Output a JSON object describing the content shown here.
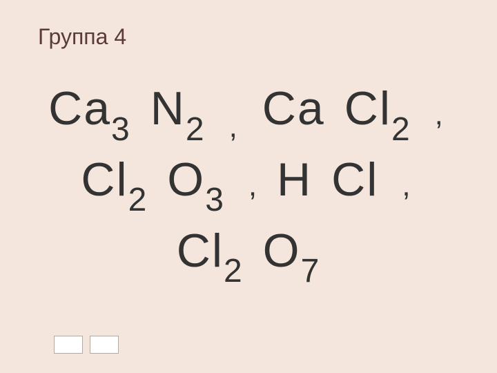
{
  "title": "Группа 4",
  "line1": {
    "t1": "Ca",
    "s1": "3",
    "t2": "N",
    "s2": "2",
    "c1": ",",
    "t3": "Ca",
    "t4": "Cl",
    "s4": "2",
    "c2": ","
  },
  "line2": {
    "t1": "Cl",
    "s1": "2",
    "t2": "O",
    "s2": "3",
    "c1": ",",
    "t3": "H",
    "t4": "Cl",
    "c2": ","
  },
  "line3": {
    "t1": "Cl",
    "s1": "2",
    "t2": "O",
    "s2": "7"
  },
  "colors": {
    "background": "#f5e6dd",
    "title_text": "#5a3a3a",
    "formula_text": "#333333",
    "button_bg": "#ffffff",
    "button_border": "#b5a89f"
  },
  "typography": {
    "title_fontsize": 32,
    "formula_fontsize": 68,
    "subscript_fontsize": 48,
    "comma_fontsize": 44
  }
}
